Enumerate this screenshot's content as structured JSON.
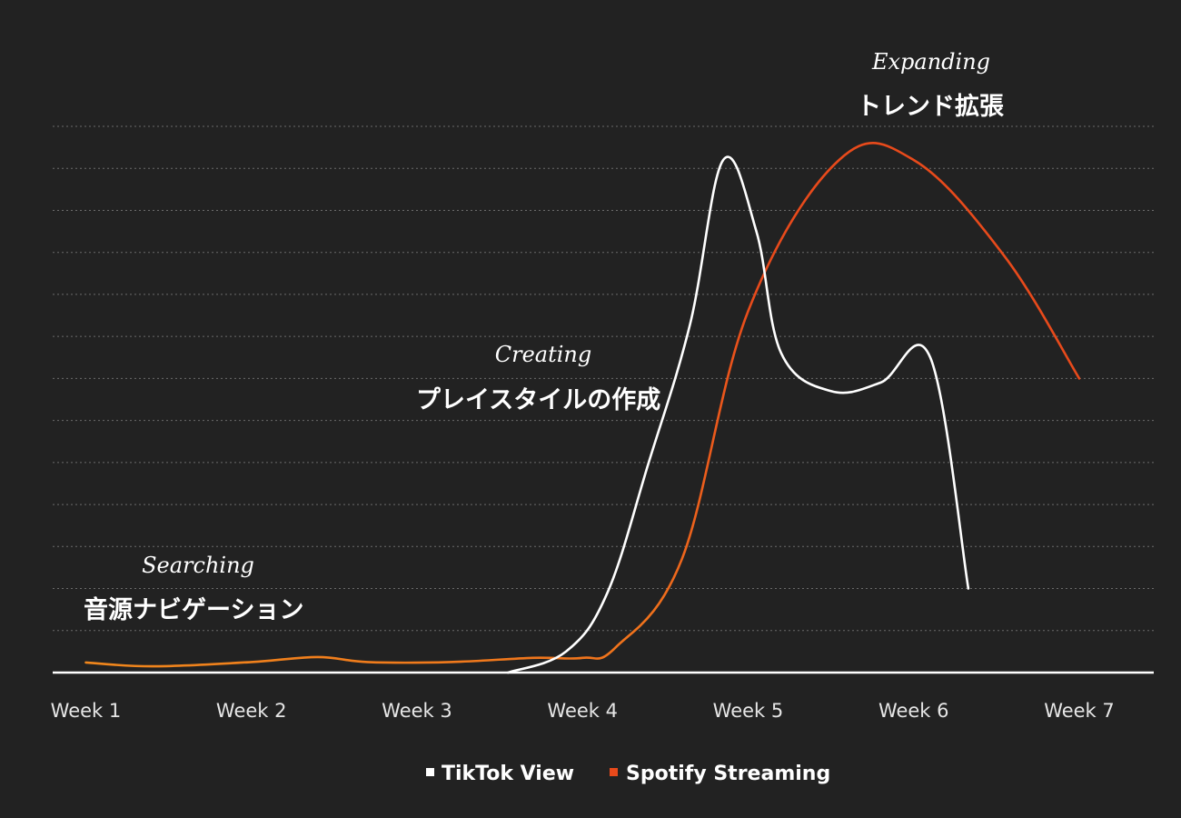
{
  "chart_data": {
    "type": "line",
    "categories": [
      "Week 1",
      "Week 2",
      "Week 3",
      "Week 4",
      "Week 5",
      "Week 6",
      "Week 7"
    ],
    "x": [
      1,
      2,
      3,
      4,
      5,
      6,
      7
    ],
    "xlim": [
      0.8,
      7.45
    ],
    "ylim": [
      0,
      13
    ],
    "grid": true,
    "legend_position": "bottom-center",
    "series": [
      {
        "name": "TikTok View",
        "color": "#ffffff",
        "points": [
          [
            3.55,
            0
          ],
          [
            3.9,
            0.5
          ],
          [
            4.15,
            1.9
          ],
          [
            4.4,
            5.0
          ],
          [
            4.65,
            8.3
          ],
          [
            4.85,
            12.2
          ],
          [
            5.05,
            10.5
          ],
          [
            5.2,
            7.6
          ],
          [
            5.5,
            6.7
          ],
          [
            5.8,
            6.9
          ],
          [
            6.1,
            7.5
          ],
          [
            6.33,
            2.0
          ]
        ]
      },
      {
        "name": "Spotify Streaming",
        "color": "#e84a1b",
        "points": [
          [
            1.0,
            0.24
          ],
          [
            1.4,
            0.15
          ],
          [
            2.0,
            0.25
          ],
          [
            2.4,
            0.37
          ],
          [
            2.7,
            0.25
          ],
          [
            3.2,
            0.25
          ],
          [
            3.7,
            0.35
          ],
          [
            4.0,
            0.35
          ],
          [
            4.2,
            0.6
          ],
          [
            4.6,
            2.7
          ],
          [
            5.0,
            8.6
          ],
          [
            5.55,
            12.2
          ],
          [
            6.0,
            12.2
          ],
          [
            6.55,
            9.9
          ],
          [
            7.0,
            7.0
          ]
        ]
      }
    ],
    "annotations": [
      {
        "en": "Searching",
        "ja": "音源ナビゲーション"
      },
      {
        "en": "Creating",
        "ja": "プレイスタイルの作成"
      },
      {
        "en": "Expanding",
        "ja": "トレンド拡張"
      }
    ]
  }
}
